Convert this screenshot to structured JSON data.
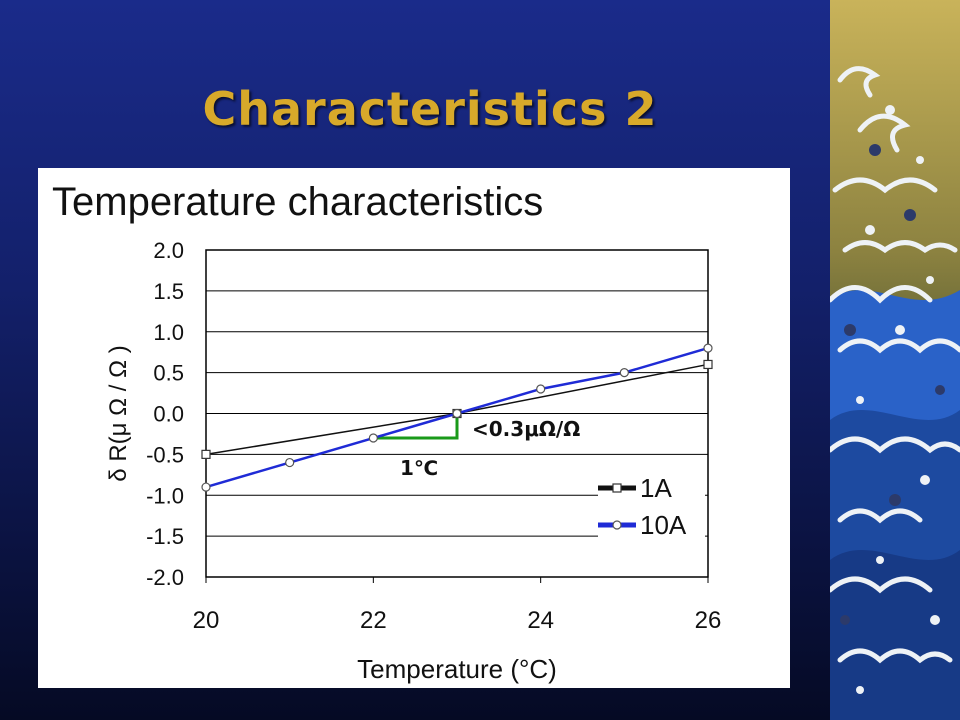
{
  "slide": {
    "title": "Characteristics 2",
    "heading": "Temperature characteristics"
  },
  "colors": {
    "title": "#d8a92a",
    "series_1A": "#111111",
    "series_10A": "#1f2bd6",
    "annotation": "#1a9a1a"
  },
  "annotations": {
    "slope": "<0.3μΩ/Ω",
    "delta_t": "1℃"
  },
  "chart_data": {
    "type": "line",
    "xlabel": "Temperature (°C)",
    "ylabel": "δ R(μ Ω / Ω )",
    "xlim": [
      20,
      26
    ],
    "ylim": [
      -2.0,
      2.0
    ],
    "xticks": [
      "20",
      "22",
      "24",
      "26"
    ],
    "yticks": [
      "2.0",
      "1.5",
      "1.0",
      "0.5",
      "0.0",
      "-0.5",
      "-1.0",
      "-1.5",
      "-2.0"
    ],
    "grid": "horizontal",
    "legend_position": "bottom-right",
    "series": [
      {
        "name": "1A",
        "marker": "square",
        "x": [
          20,
          23,
          26
        ],
        "y": [
          -0.5,
          0.0,
          0.6
        ]
      },
      {
        "name": "10A",
        "marker": "circle",
        "x": [
          20,
          21,
          22,
          23,
          24,
          25,
          26
        ],
        "y": [
          -0.9,
          -0.6,
          -0.3,
          0.0,
          0.3,
          0.5,
          0.8
        ]
      }
    ]
  }
}
